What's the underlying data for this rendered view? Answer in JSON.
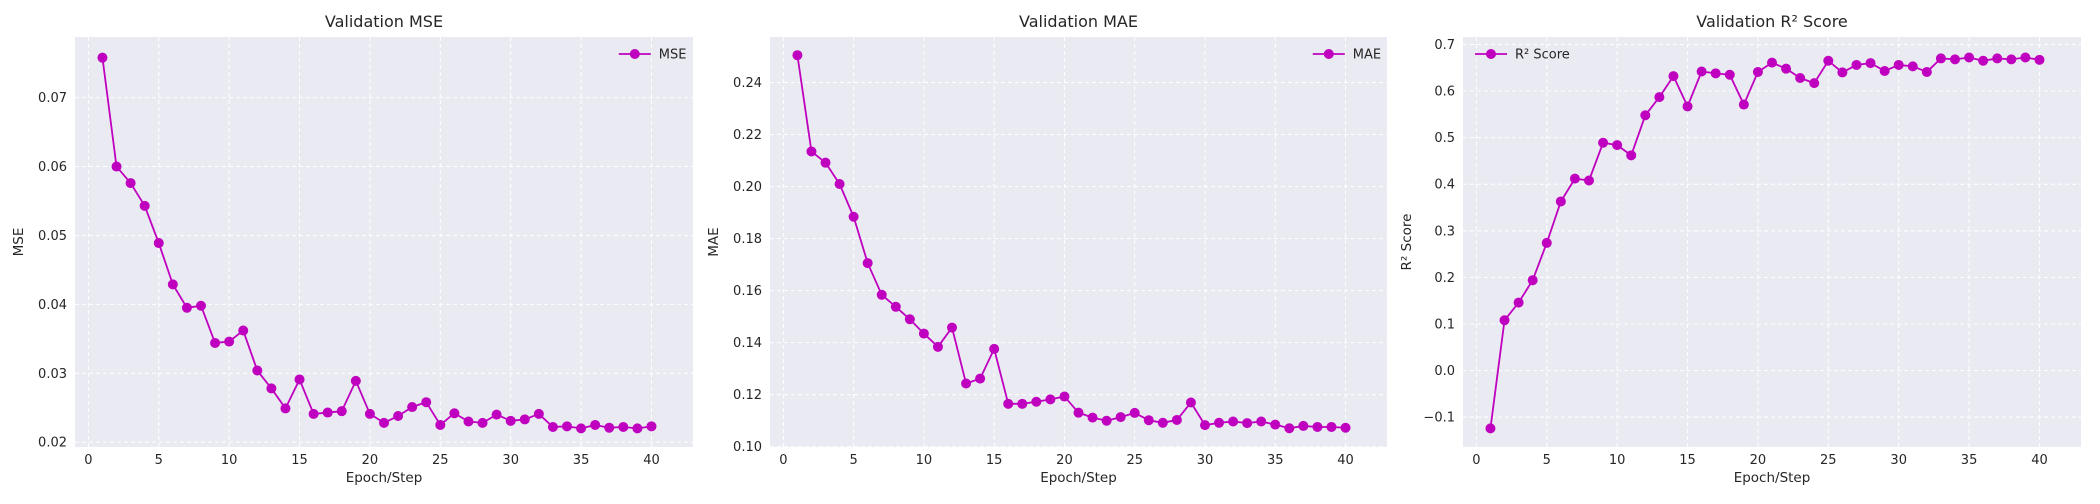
{
  "accent_color": "#bf00bf",
  "chart_data": [
    {
      "type": "line",
      "title": "Validation MSE",
      "xlabel": "Epoch/Step",
      "ylabel": "MSE",
      "xlim": [
        -0.95,
        42.95
      ],
      "ylim": [
        0.0193,
        0.0788
      ],
      "xticks": [
        0,
        5,
        10,
        15,
        20,
        25,
        30,
        35,
        40
      ],
      "yticks": [
        0.02,
        0.03,
        0.04,
        0.05,
        0.06,
        0.07
      ],
      "ytick_labels": [
        "0.02",
        "0.03",
        "0.04",
        "0.05",
        "0.06",
        "0.07"
      ],
      "grid": true,
      "legend_position": "upper-right",
      "series": [
        {
          "name": "MSE",
          "color": "#bf00bf",
          "x": [
            1,
            2,
            3,
            4,
            5,
            6,
            7,
            8,
            9,
            10,
            11,
            12,
            13,
            14,
            15,
            16,
            17,
            18,
            19,
            20,
            21,
            22,
            23,
            24,
            25,
            26,
            27,
            28,
            29,
            30,
            31,
            32,
            33,
            34,
            35,
            36,
            37,
            38,
            39,
            40
          ],
          "y": [
            0.0758,
            0.06,
            0.0576,
            0.0543,
            0.0489,
            0.0429,
            0.0395,
            0.0398,
            0.0344,
            0.0346,
            0.0362,
            0.0304,
            0.0278,
            0.0249,
            0.0291,
            0.0241,
            0.0243,
            0.0245,
            0.0289,
            0.0241,
            0.0228,
            0.0238,
            0.0251,
            0.0258,
            0.0225,
            0.0242,
            0.023,
            0.0228,
            0.024,
            0.0231,
            0.0233,
            0.0241,
            0.0222,
            0.0223,
            0.022,
            0.0225,
            0.0221,
            0.0222,
            0.022,
            0.0223
          ]
        }
      ]
    },
    {
      "type": "line",
      "title": "Validation MAE",
      "xlabel": "Epoch/Step",
      "ylabel": "MAE",
      "xlim": [
        -0.95,
        42.95
      ],
      "ylim": [
        0.0999,
        0.2575
      ],
      "xticks": [
        0,
        5,
        10,
        15,
        20,
        25,
        30,
        35,
        40
      ],
      "yticks": [
        0.1,
        0.12,
        0.14,
        0.16,
        0.18,
        0.2,
        0.22,
        0.24
      ],
      "ytick_labels": [
        "0.10",
        "0.12",
        "0.14",
        "0.16",
        "0.18",
        "0.20",
        "0.22",
        "0.24"
      ],
      "grid": true,
      "legend_position": "upper-right",
      "series": [
        {
          "name": "MAE",
          "color": "#bf00bf",
          "x": [
            1,
            2,
            3,
            4,
            5,
            6,
            7,
            8,
            9,
            10,
            11,
            12,
            13,
            14,
            15,
            16,
            17,
            18,
            19,
            20,
            21,
            22,
            23,
            24,
            25,
            26,
            27,
            28,
            29,
            30,
            31,
            32,
            33,
            34,
            35,
            36,
            37,
            38,
            39,
            40
          ],
          "y": [
            0.2505,
            0.2135,
            0.2092,
            0.201,
            0.1884,
            0.1706,
            0.1584,
            0.1538,
            0.149,
            0.1435,
            0.1384,
            0.1458,
            0.1243,
            0.1262,
            0.1376,
            0.1165,
            0.1165,
            0.1173,
            0.1182,
            0.1193,
            0.1131,
            0.1112,
            0.11,
            0.1114,
            0.113,
            0.1102,
            0.1092,
            0.1103,
            0.117,
            0.1083,
            0.1092,
            0.1097,
            0.1091,
            0.1097,
            0.1085,
            0.1071,
            0.108,
            0.1076,
            0.1076,
            0.1073
          ]
        }
      ]
    },
    {
      "type": "line",
      "title": "Validation R² Score",
      "xlabel": "Epoch/Step",
      "ylabel": "R² Score",
      "xlim": [
        -0.95,
        42.95
      ],
      "ylim": [
        -0.164,
        0.716
      ],
      "xticks": [
        0,
        5,
        10,
        15,
        20,
        25,
        30,
        35,
        40
      ],
      "yticks": [
        -0.1,
        0.0,
        0.1,
        0.2,
        0.3,
        0.4,
        0.5,
        0.6,
        0.7
      ],
      "ytick_labels": [
        "−0.1",
        "0.0",
        "0.1",
        "0.2",
        "0.3",
        "0.4",
        "0.5",
        "0.6",
        "0.7"
      ],
      "grid": true,
      "legend_position": "upper-left",
      "series": [
        {
          "name": "R² Score",
          "color": "#bf00bf",
          "x": [
            1,
            2,
            3,
            4,
            5,
            6,
            7,
            8,
            9,
            10,
            11,
            12,
            13,
            14,
            15,
            16,
            17,
            18,
            19,
            20,
            21,
            22,
            23,
            24,
            25,
            26,
            27,
            28,
            29,
            30,
            31,
            32,
            33,
            34,
            35,
            36,
            37,
            38,
            39,
            40
          ],
          "y": [
            -0.124,
            0.108,
            0.146,
            0.194,
            0.274,
            0.363,
            0.412,
            0.408,
            0.489,
            0.484,
            0.462,
            0.548,
            0.587,
            0.632,
            0.567,
            0.642,
            0.638,
            0.635,
            0.571,
            0.641,
            0.661,
            0.648,
            0.628,
            0.617,
            0.665,
            0.64,
            0.656,
            0.66,
            0.643,
            0.656,
            0.653,
            0.641,
            0.67,
            0.668,
            0.672,
            0.665,
            0.67,
            0.668,
            0.672,
            0.667
          ]
        }
      ]
    }
  ]
}
